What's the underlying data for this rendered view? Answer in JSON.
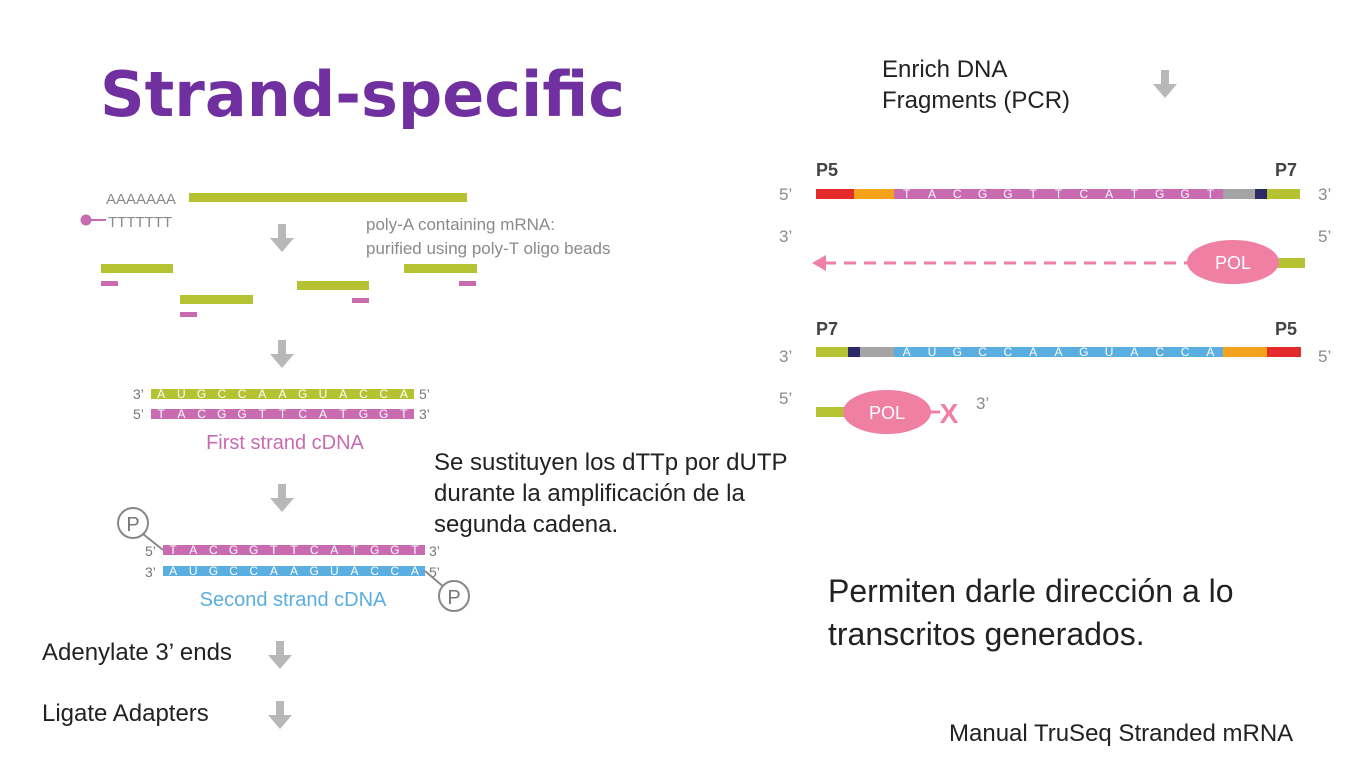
{
  "title": "Strand-specific",
  "left_diagram": {
    "polyA_label": "AAAAAAA",
    "polyT_label": "TTTTTTT",
    "mrna_caption_line1": "poly-A containing mRNA:",
    "mrna_caption_line2": "purified using poly-T oligo beads",
    "prime_3": "3’",
    "prime_5": "5’",
    "seq_top": [
      "A",
      "U",
      "G",
      "C",
      "C",
      "A",
      "A",
      "G",
      "U",
      "A",
      "C",
      "C",
      "A"
    ],
    "seq_bottom": [
      "T",
      "A",
      "C",
      "G",
      "G",
      "T",
      "T",
      "C",
      "A",
      "T",
      "G",
      "G",
      "T"
    ],
    "first_strand_label": "First strand cDNA",
    "second_strand_label": "Second strand cDNA",
    "phosphate_symbol": "P"
  },
  "steps": {
    "adenylate": "Adenylate 3’ ends",
    "ligate": "Ligate Adapters",
    "enrich_line1": "Enrich DNA",
    "enrich_line2": "Fragments (PCR)"
  },
  "dutp_note": {
    "line1": "Se sustituyen los dTTp por dUTP",
    "line2": "durante la amplificación de la",
    "line3": "segunda cadena."
  },
  "right_diagram": {
    "p5": "P5",
    "p7": "P7",
    "prime_3": "3’",
    "prime_5": "5’",
    "seq_pink": [
      "T",
      "A",
      "C",
      "G",
      "G",
      "T",
      "T",
      "C",
      "A",
      "T",
      "G",
      "G",
      "T"
    ],
    "seq_blue": [
      "A",
      "U",
      "G",
      "C",
      "C",
      "A",
      "A",
      "G",
      "U",
      "A",
      "C",
      "C",
      "A"
    ],
    "pol_label": "POL",
    "block_symbol": "X"
  },
  "conclusion": {
    "line1": "Permiten darle dirección a lo",
    "line2": "transcritos generados."
  },
  "source": "Manual TruSeq Stranded mRNA",
  "colors": {
    "title": "#7030a0",
    "green": "#b5c333",
    "pink": "#c86bb0",
    "blue": "#5aaee0",
    "pol": "#f07fa4",
    "red": "#e32b2b",
    "orange": "#f4a21c",
    "gray": "#a4a4a4",
    "navy": "#2a2a66",
    "arrow_gray": "#b8b8b8"
  }
}
